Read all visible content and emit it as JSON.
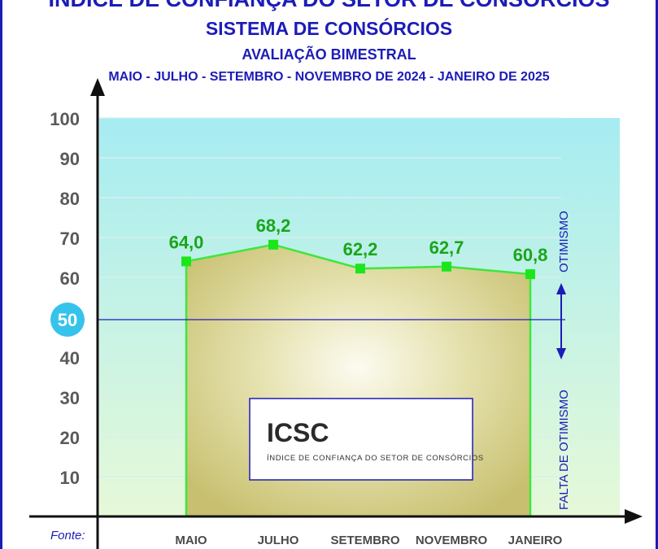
{
  "header": {
    "title": "ÍNDICE DE CONFIANÇA DO SETOR DE CONSÓRCIOS",
    "subtitle": "SISTEMA DE CONSÓRCIOS",
    "subtitle2": "AVALIAÇÃO BIMESTRAL",
    "period": "MAIO - JULHO - SETEMBRO - NOVEMBRO DE 2024 - JANEIRO DE 2025"
  },
  "legend_box": {
    "big": "ICSC",
    "small": "ÍNDICE DE CONFIANÇA DO SETOR DE CONSÓRCIOS"
  },
  "side_labels": {
    "up": "OTIMISMO",
    "down": "FALTA DE OTIMISMO"
  },
  "reference": {
    "value": 50,
    "label": "50"
  },
  "footer": {
    "source_label": "Fonte:"
  },
  "colors": {
    "title": "#1c1cb8",
    "line": "#3ee63e",
    "marker": "#1be61b",
    "area_fill": "#c8c070",
    "sky_top": "#a6ecf2",
    "sky_bottom": "#e6f9d8",
    "reference_line": "#1c1cb8",
    "badge": "#35c3ec"
  },
  "chart_data": {
    "type": "area",
    "categories": [
      "MAIO",
      "JULHO",
      "SETEMBRO",
      "NOVEMBRO",
      "JANEIRO"
    ],
    "values": [
      64.0,
      68.2,
      62.2,
      62.7,
      60.8
    ],
    "data_labels": [
      "64,0",
      "68,2",
      "62,2",
      "62,7",
      "60,8"
    ],
    "yticks": [
      10,
      20,
      30,
      40,
      50,
      60,
      70,
      80,
      90,
      100
    ],
    "ylim": [
      0,
      100
    ],
    "grid": true
  }
}
